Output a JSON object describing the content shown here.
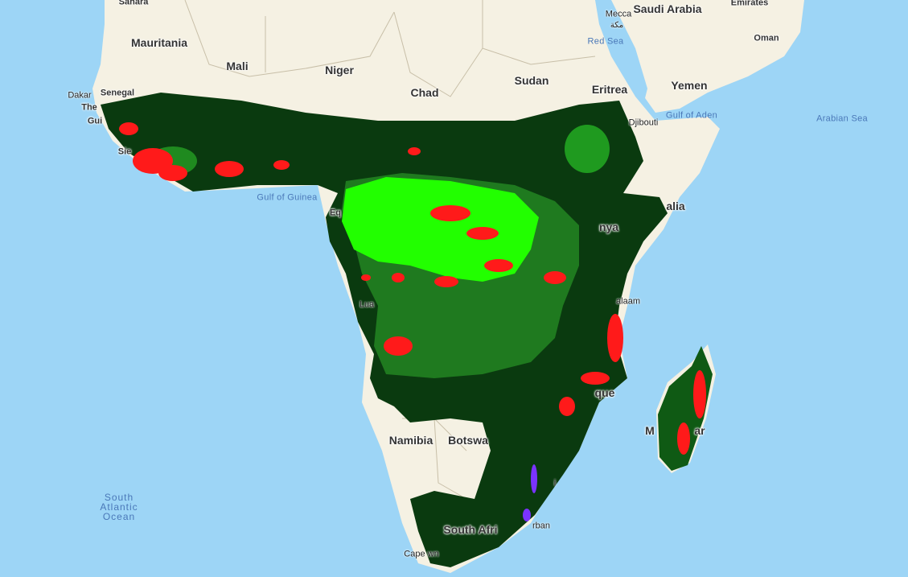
{
  "countries": {
    "sahara": "Sahara",
    "saudi_arabia": "Saudi Arabia",
    "emirates": "Emirates",
    "mauritania": "Mauritania",
    "oman": "Oman",
    "mali": "Mali",
    "niger": "Niger",
    "sudan": "Sudan",
    "eritrea": "Eritrea",
    "yemen": "Yemen",
    "chad": "Chad",
    "senegal": "Senegal",
    "the_gambia": "The",
    "guinea": "Gui",
    "djibouti": "Djibouti",
    "sierra_leone": "Sie",
    "somalia": "alia",
    "kenya": "nya",
    "equatorial": "Eq",
    "namibia": "Namibia",
    "botswana": "Botswa",
    "madagascar_left": "M",
    "madagascar_right": "ar",
    "south_africa": "South Afri"
  },
  "cities": {
    "mecca": "Mecca",
    "mecca_ar": "مكة",
    "dakar": "Dakar",
    "luanda": "Lua",
    "dar": "alaam",
    "mozambique": "que",
    "durban": "rban",
    "mbabane": "i",
    "cape_town": "Cape   wn"
  },
  "water": {
    "red_sea": "Red Sea",
    "gulf_aden": "Gulf of Aden",
    "arabian_sea": "Arabian Sea",
    "gulf_guinea": "Gulf of Guinea"
  },
  "ocean": {
    "line1": "South",
    "line2": "Atlantic",
    "line3": "Ocean"
  },
  "colors": {
    "water": "#9dd5f6",
    "land": "#f5f1e3",
    "forest_dark": "#0a3a0f",
    "forest_mid": "#1f7a1f",
    "forest_bright": "#22ff00",
    "loss": "#ff1a1a",
    "other": "#7a33ff"
  }
}
